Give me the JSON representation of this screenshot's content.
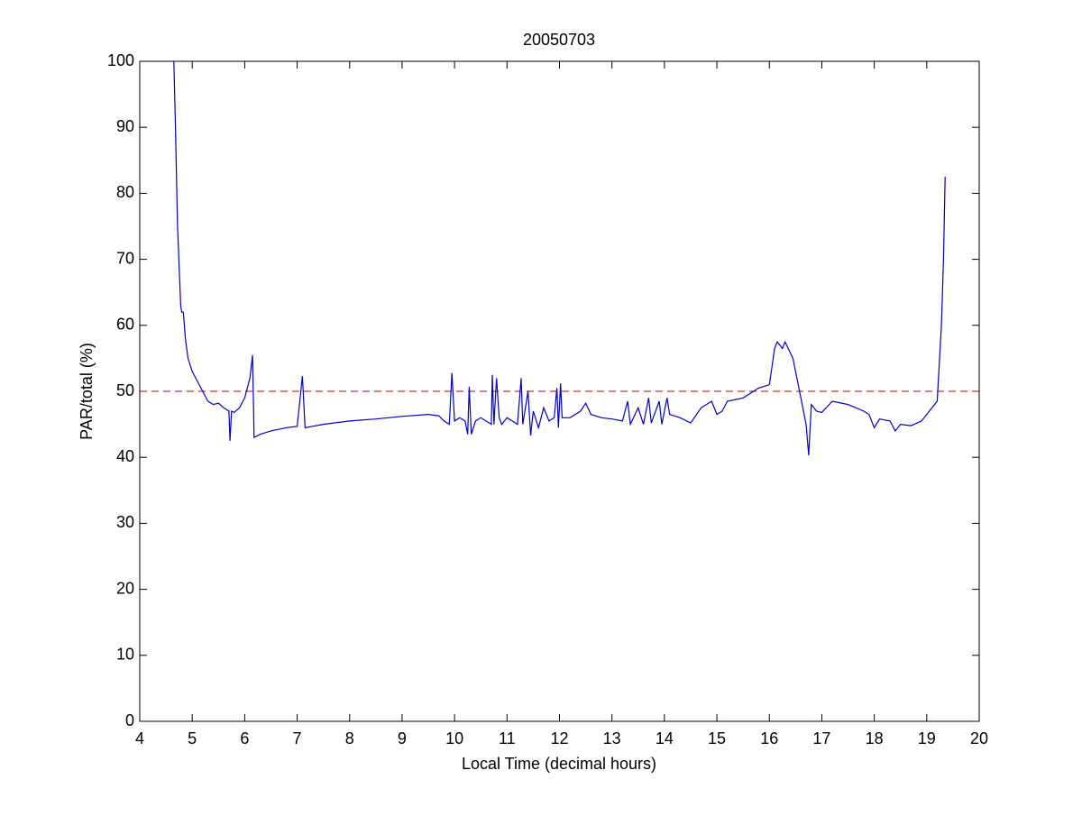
{
  "chart_data": {
    "type": "line",
    "title": "20050703",
    "x_label": "Local Time (decimal hours)",
    "y_label": "PAR/total (%)",
    "x": [
      4.65,
      4.68,
      4.72,
      4.78,
      4.8,
      4.83,
      4.87,
      4.92,
      5.0,
      5.1,
      5.2,
      5.3,
      5.4,
      5.5,
      5.6,
      5.7,
      5.72,
      5.75,
      5.8,
      5.9,
      6.0,
      6.1,
      6.15,
      6.18,
      6.3,
      6.5,
      6.8,
      7.0,
      7.1,
      7.15,
      7.5,
      8.0,
      8.5,
      9.0,
      9.5,
      9.7,
      9.8,
      9.9,
      9.95,
      10.0,
      10.1,
      10.2,
      10.25,
      10.28,
      10.32,
      10.4,
      10.5,
      10.6,
      10.7,
      10.72,
      10.75,
      10.8,
      10.85,
      10.9,
      11.0,
      11.1,
      11.2,
      11.27,
      11.3,
      11.4,
      11.45,
      11.5,
      11.6,
      11.7,
      11.8,
      11.9,
      11.95,
      11.98,
      12.02,
      12.05,
      12.2,
      12.4,
      12.5,
      12.6,
      12.8,
      13.0,
      13.2,
      13.3,
      13.35,
      13.5,
      13.6,
      13.7,
      13.75,
      13.9,
      13.95,
      14.05,
      14.1,
      14.3,
      14.5,
      14.7,
      14.9,
      15.0,
      15.1,
      15.2,
      15.5,
      15.8,
      16.0,
      16.1,
      16.15,
      16.25,
      16.3,
      16.45,
      16.6,
      16.7,
      16.75,
      16.8,
      16.9,
      17.0,
      17.2,
      17.5,
      17.8,
      17.9,
      18.0,
      18.1,
      18.3,
      18.4,
      18.5,
      18.7,
      18.9,
      19.0,
      19.1,
      19.2,
      19.28,
      19.32,
      19.35
    ],
    "series": [
      {
        "color": "#0000cc",
        "values": [
          100,
          90,
          75,
          63,
          62,
          62,
          58,
          55,
          53,
          51.5,
          50,
          48.5,
          48,
          48.2,
          47.5,
          47,
          42.5,
          47,
          46.8,
          47.5,
          49,
          52,
          55.5,
          43,
          43.5,
          44,
          44.5,
          44.7,
          52.3,
          44.5,
          45,
          45.5,
          45.8,
          46.2,
          46.5,
          46.3,
          45.5,
          45,
          52.8,
          45.5,
          46,
          45.5,
          43.5,
          50.7,
          43.5,
          45.5,
          46,
          45.5,
          45,
          52.5,
          45,
          52,
          46,
          45,
          46,
          45.5,
          45,
          52,
          45,
          50,
          43.3,
          47,
          44.5,
          47.5,
          45.5,
          46,
          50.5,
          44.5,
          51.2,
          46,
          46,
          47,
          48.2,
          46.5,
          46,
          45.8,
          45.5,
          48.5,
          45,
          47.5,
          45,
          49,
          45.2,
          48.5,
          45,
          49,
          46.5,
          46,
          45.2,
          47.5,
          48.5,
          46.5,
          47,
          48.5,
          49,
          50.5,
          51,
          56.5,
          57.5,
          56.5,
          57.5,
          55,
          49,
          45,
          40.3,
          48,
          47,
          46.8,
          48.5,
          48,
          47,
          46.5,
          44.5,
          45.8,
          45.5,
          44,
          45,
          44.8,
          45.5,
          46.5,
          47.5,
          48.5,
          60,
          70,
          82.5
        ]
      }
    ],
    "reference_line": {
      "value": 50,
      "color": "#cc3333"
    },
    "xlim": [
      4,
      20
    ],
    "xticks": [
      4,
      5,
      6,
      7,
      8,
      9,
      10,
      11,
      12,
      13,
      14,
      15,
      16,
      17,
      18,
      19,
      20
    ],
    "ylim": [
      0,
      100
    ],
    "yticks": [
      0,
      10,
      20,
      30,
      40,
      50,
      60,
      70,
      80,
      90,
      100
    ]
  }
}
